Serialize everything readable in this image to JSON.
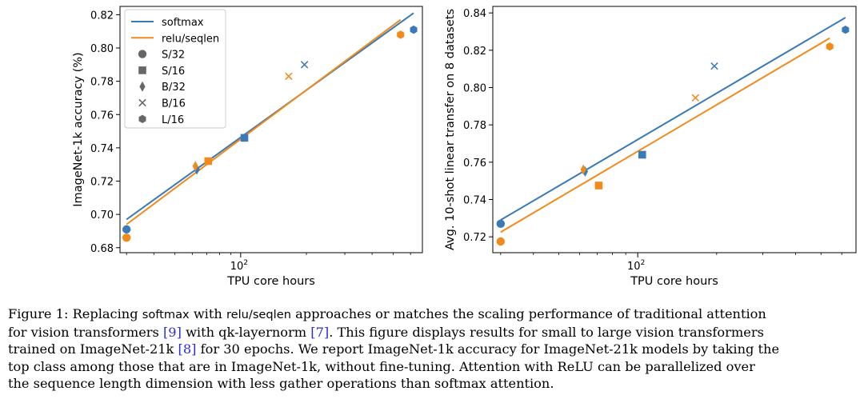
{
  "colors": {
    "softmax": "#3a7ab6",
    "relu": "#f28a1a"
  },
  "legend": {
    "items": [
      {
        "label": "softmax",
        "kind": "line",
        "color": "#3a7ab6"
      },
      {
        "label": "relu/seqlen",
        "kind": "line",
        "color": "#f28a1a"
      },
      {
        "label": "S/32",
        "kind": "circle"
      },
      {
        "label": "S/16",
        "kind": "square"
      },
      {
        "label": "B/32",
        "kind": "diamond"
      },
      {
        "label": "B/16",
        "kind": "x"
      },
      {
        "label": "L/16",
        "kind": "hexagon"
      }
    ]
  },
  "chart_data": [
    {
      "type": "scatter",
      "xscale": "log",
      "xlabel": "TPU core hours",
      "ylabel": "ImageNet-1k accuracy (%)",
      "xlim": [
        28,
        680
      ],
      "ylim": [
        0.677,
        0.825
      ],
      "xticks": [
        {
          "value": 100,
          "base": "10",
          "exp": "2"
        }
      ],
      "yticks": [
        "0.68",
        "0.70",
        "0.72",
        "0.74",
        "0.76",
        "0.78",
        "0.80",
        "0.82"
      ],
      "series": [
        {
          "name": "softmax",
          "color": "#3a7ab6",
          "fit": {
            "x": [
              30,
              620
            ],
            "y": [
              0.697,
              0.821
            ]
          },
          "points": [
            {
              "model": "S/32",
              "marker": "circle",
              "x": 30,
              "y": 0.691
            },
            {
              "model": "S/16",
              "marker": "square",
              "x": 104,
              "y": 0.746
            },
            {
              "model": "B/32",
              "marker": "diamond",
              "x": 63,
              "y": 0.727
            },
            {
              "model": "B/16",
              "marker": "x",
              "x": 196,
              "y": 0.79
            },
            {
              "model": "L/16",
              "marker": "hexagon",
              "x": 620,
              "y": 0.811
            }
          ]
        },
        {
          "name": "relu/seqlen",
          "color": "#f28a1a",
          "fit": {
            "x": [
              30,
              540
            ],
            "y": [
              0.694,
              0.817
            ]
          },
          "points": [
            {
              "model": "S/32",
              "marker": "circle",
              "x": 30,
              "y": 0.686
            },
            {
              "model": "S/16",
              "marker": "square",
              "x": 71,
              "y": 0.732
            },
            {
              "model": "B/32",
              "marker": "diamond",
              "x": 62,
              "y": 0.729
            },
            {
              "model": "B/16",
              "marker": "x",
              "x": 166,
              "y": 0.783
            },
            {
              "model": "L/16",
              "marker": "hexagon",
              "x": 540,
              "y": 0.808
            }
          ]
        }
      ]
    },
    {
      "type": "scatter",
      "xscale": "log",
      "xlabel": "TPU core hours",
      "ylabel": "Avg. 10-shot linear transfer on 8 datasets",
      "xlim": [
        28,
        680
      ],
      "ylim": [
        0.7115,
        0.8435
      ],
      "xticks": [
        {
          "value": 100,
          "base": "10",
          "exp": "2"
        }
      ],
      "yticks": [
        "0.72",
        "0.74",
        "0.76",
        "0.78",
        "0.80",
        "0.82",
        "0.84"
      ],
      "series": [
        {
          "name": "softmax",
          "color": "#3a7ab6",
          "fit": {
            "x": [
              30,
              620
            ],
            "y": [
              0.729,
              0.8375
            ]
          },
          "points": [
            {
              "model": "S/32",
              "marker": "circle",
              "x": 30,
              "y": 0.727
            },
            {
              "model": "S/16",
              "marker": "square",
              "x": 104,
              "y": 0.764
            },
            {
              "model": "B/32",
              "marker": "diamond",
              "x": 63,
              "y": 0.755
            },
            {
              "model": "B/16",
              "marker": "x",
              "x": 196,
              "y": 0.8115
            },
            {
              "model": "L/16",
              "marker": "hexagon",
              "x": 620,
              "y": 0.831
            }
          ]
        },
        {
          "name": "relu/seqlen",
          "color": "#f28a1a",
          "fit": {
            "x": [
              30,
              540
            ],
            "y": [
              0.7225,
              0.8265
            ]
          },
          "points": [
            {
              "model": "S/32",
              "marker": "circle",
              "x": 30,
              "y": 0.7175
            },
            {
              "model": "S/16",
              "marker": "square",
              "x": 71,
              "y": 0.7475
            },
            {
              "model": "B/32",
              "marker": "diamond",
              "x": 62,
              "y": 0.756
            },
            {
              "model": "B/16",
              "marker": "x",
              "x": 166,
              "y": 0.7945
            },
            {
              "model": "L/16",
              "marker": "hexagon",
              "x": 540,
              "y": 0.822
            }
          ]
        }
      ]
    }
  ],
  "caption": {
    "label": "Figure 1:",
    "t1": "Replacing",
    "code1": "softmax",
    "t2": "with",
    "code2": "relu/seqlen",
    "t3": "approaches or matches the scaling performance of traditional attention",
    "t4": "for vision transformers",
    "ref1": "[9]",
    "t5": "with qk-layernorm",
    "ref2": "[7]",
    "t6": ". This figure displays results for small to large vision transformers",
    "t7": "trained on ImageNet-21k",
    "ref3": "[8]",
    "t8": "for 30 epochs. We report ImageNet-1k accuracy for ImageNet-21k models by taking the",
    "t9": "top class among those that are in ImageNet-1k, without fine-tuning. Attention with ReLU can be parallelized over",
    "t10": "the sequence length dimension with less gather operations than softmax attention."
  }
}
